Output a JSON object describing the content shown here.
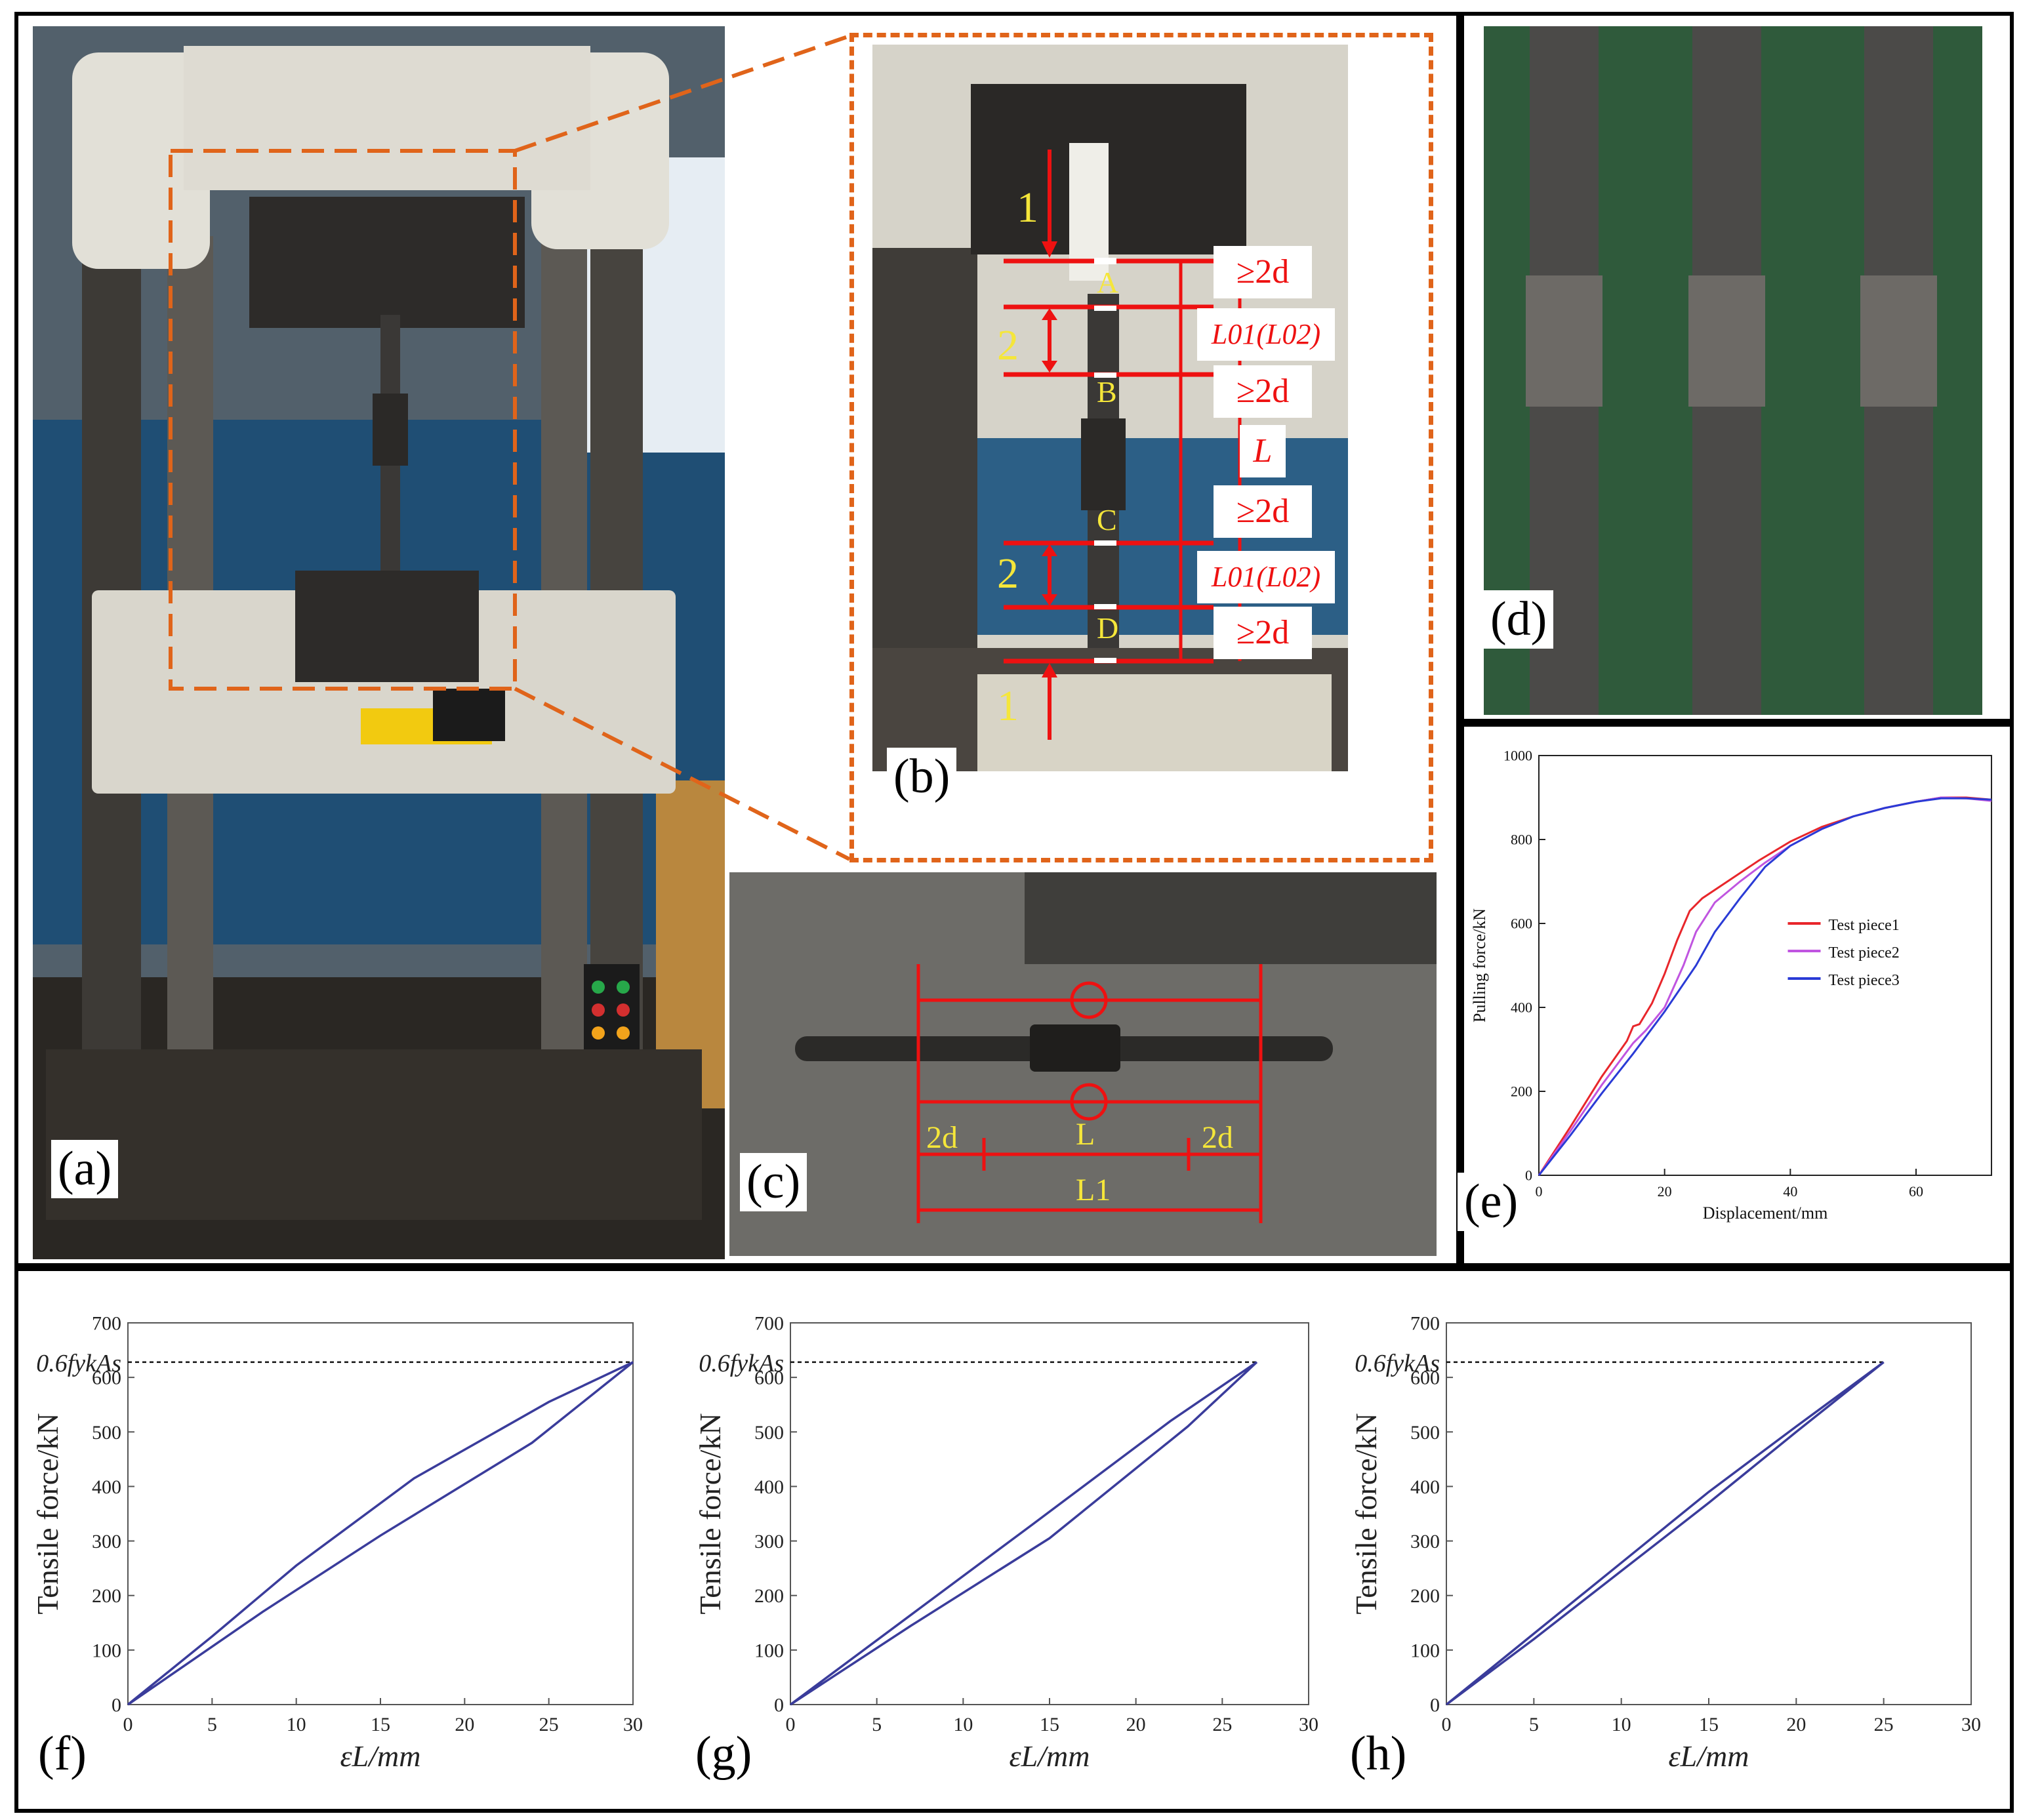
{
  "panels": {
    "a": {
      "label": "(a)"
    },
    "b": {
      "label": "(b)",
      "points": [
        "A",
        "B",
        "C",
        "D"
      ],
      "zone_marks": [
        "1",
        "2",
        "2",
        "1"
      ],
      "dims": [
        "≥2d",
        "L01(L02)",
        "≥2d",
        "L",
        "≥2d",
        "L01(L02)",
        "≥2d"
      ]
    },
    "c": {
      "label": "(c)",
      "dims": [
        "2d",
        "L",
        "2d",
        "L1"
      ]
    },
    "d": {
      "label": "(d)"
    },
    "e": {
      "label": "(e)"
    },
    "f": {
      "label": "(f)"
    },
    "g": {
      "label": "(g)"
    },
    "h": {
      "label": "(h)"
    }
  },
  "chart_data": [
    {
      "id": "e",
      "type": "line",
      "xlabel": "Displacement/mm",
      "ylabel": "Pulling force/kN",
      "xlim": [
        0,
        72
      ],
      "ylim": [
        0,
        1000
      ],
      "xticks": [
        0,
        20,
        40,
        60
      ],
      "yticks": [
        0,
        200,
        400,
        600,
        800,
        1000
      ],
      "legend_position": "center-right",
      "series": [
        {
          "name": "Test piece1",
          "color": "#e8262b",
          "x": [
            0,
            5,
            10,
            14,
            15,
            16,
            18,
            20,
            22,
            24,
            26,
            30,
            35,
            40,
            45,
            50,
            55,
            60,
            64,
            68,
            72
          ],
          "y": [
            0,
            115,
            235,
            320,
            355,
            360,
            410,
            480,
            560,
            630,
            660,
            700,
            750,
            795,
            830,
            855,
            875,
            890,
            900,
            900,
            895
          ]
        },
        {
          "name": "Test piece2",
          "color": "#c055e0",
          "x": [
            0,
            5,
            10,
            15,
            17,
            20,
            23,
            25,
            28,
            32,
            36,
            40,
            45,
            50,
            55,
            60,
            64,
            68,
            72
          ],
          "y": [
            0,
            105,
            215,
            315,
            345,
            400,
            500,
            580,
            650,
            700,
            745,
            785,
            825,
            855,
            875,
            890,
            900,
            898,
            892
          ]
        },
        {
          "name": "Test piece3",
          "color": "#2a3bd6",
          "x": [
            0,
            5,
            10,
            15,
            20,
            25,
            28,
            32,
            36,
            40,
            45,
            50,
            55,
            60,
            64,
            68,
            72
          ],
          "y": [
            0,
            95,
            195,
            290,
            390,
            500,
            580,
            660,
            735,
            785,
            825,
            855,
            875,
            890,
            898,
            898,
            895
          ]
        }
      ]
    },
    {
      "id": "f",
      "type": "line",
      "xlabel": "εL/mm",
      "ylabel": "Tensile force/kN",
      "xlim": [
        0,
        30
      ],
      "ylim": [
        0,
        700
      ],
      "xticks": [
        0,
        5,
        10,
        15,
        20,
        25,
        30
      ],
      "yticks": [
        0,
        100,
        200,
        300,
        400,
        500,
        600,
        700
      ],
      "reference_line": {
        "label": "0.6fykAs",
        "y": 628
      },
      "series": [
        {
          "color": "#3a3c9b",
          "x": [
            0,
            5,
            10,
            17,
            25,
            30,
            24,
            15,
            8,
            0
          ],
          "y": [
            0,
            125,
            255,
            415,
            555,
            628,
            480,
            310,
            170,
            0
          ]
        }
      ]
    },
    {
      "id": "g",
      "type": "line",
      "xlabel": "εL/mm",
      "ylabel": "Tensile force/kN",
      "xlim": [
        0,
        30
      ],
      "ylim": [
        0,
        700
      ],
      "xticks": [
        0,
        5,
        10,
        15,
        20,
        25,
        30
      ],
      "yticks": [
        0,
        100,
        200,
        300,
        400,
        500,
        600,
        700
      ],
      "reference_line": {
        "label": "0.6fykAs",
        "y": 628
      },
      "series": [
        {
          "color": "#3a3c9b",
          "x": [
            0,
            7,
            14,
            22,
            27,
            23,
            15,
            7,
            0
          ],
          "y": [
            0,
            165,
            330,
            520,
            628,
            510,
            305,
            145,
            0
          ]
        }
      ]
    },
    {
      "id": "h",
      "type": "line",
      "xlabel": "εL/mm",
      "ylabel": "Tensile force/kN",
      "xlim": [
        0,
        30
      ],
      "ylim": [
        0,
        700
      ],
      "xticks": [
        0,
        5,
        10,
        15,
        20,
        25,
        30
      ],
      "yticks": [
        0,
        100,
        200,
        300,
        400,
        500,
        600,
        700
      ],
      "reference_line": {
        "label": "0.6fykAs",
        "y": 628
      },
      "series": [
        {
          "color": "#3a3c9b",
          "x": [
            0,
            5,
            10,
            15,
            20,
            25,
            20,
            15,
            10,
            5,
            0
          ],
          "y": [
            0,
            130,
            260,
            390,
            510,
            628,
            500,
            370,
            245,
            120,
            0
          ]
        }
      ]
    }
  ]
}
